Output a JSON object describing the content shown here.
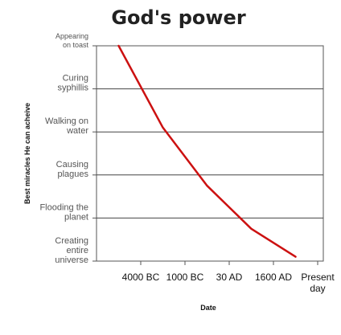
{
  "chart_data": {
    "type": "line",
    "title": "God's power",
    "xlabel": "Date",
    "ylabel": "Best miracles He can acheive",
    "x_categories": [
      "4000 BC",
      "1000 BC",
      "30 AD",
      "1600 AD",
      "Present day"
    ],
    "y_categories": [
      "Creating entire universe",
      "Flooding the planet",
      "Causing plagues",
      "Walking on water",
      "Curing syphillis",
      "Appearing on toast"
    ],
    "series": [
      {
        "color": "#cc1111",
        "x": [
          -0.5,
          0.5,
          1.5,
          2.5,
          3.5
        ],
        "y": [
          5,
          3.1,
          1.75,
          0.75,
          0.1
        ]
      }
    ],
    "grid": true,
    "legend": "none"
  }
}
